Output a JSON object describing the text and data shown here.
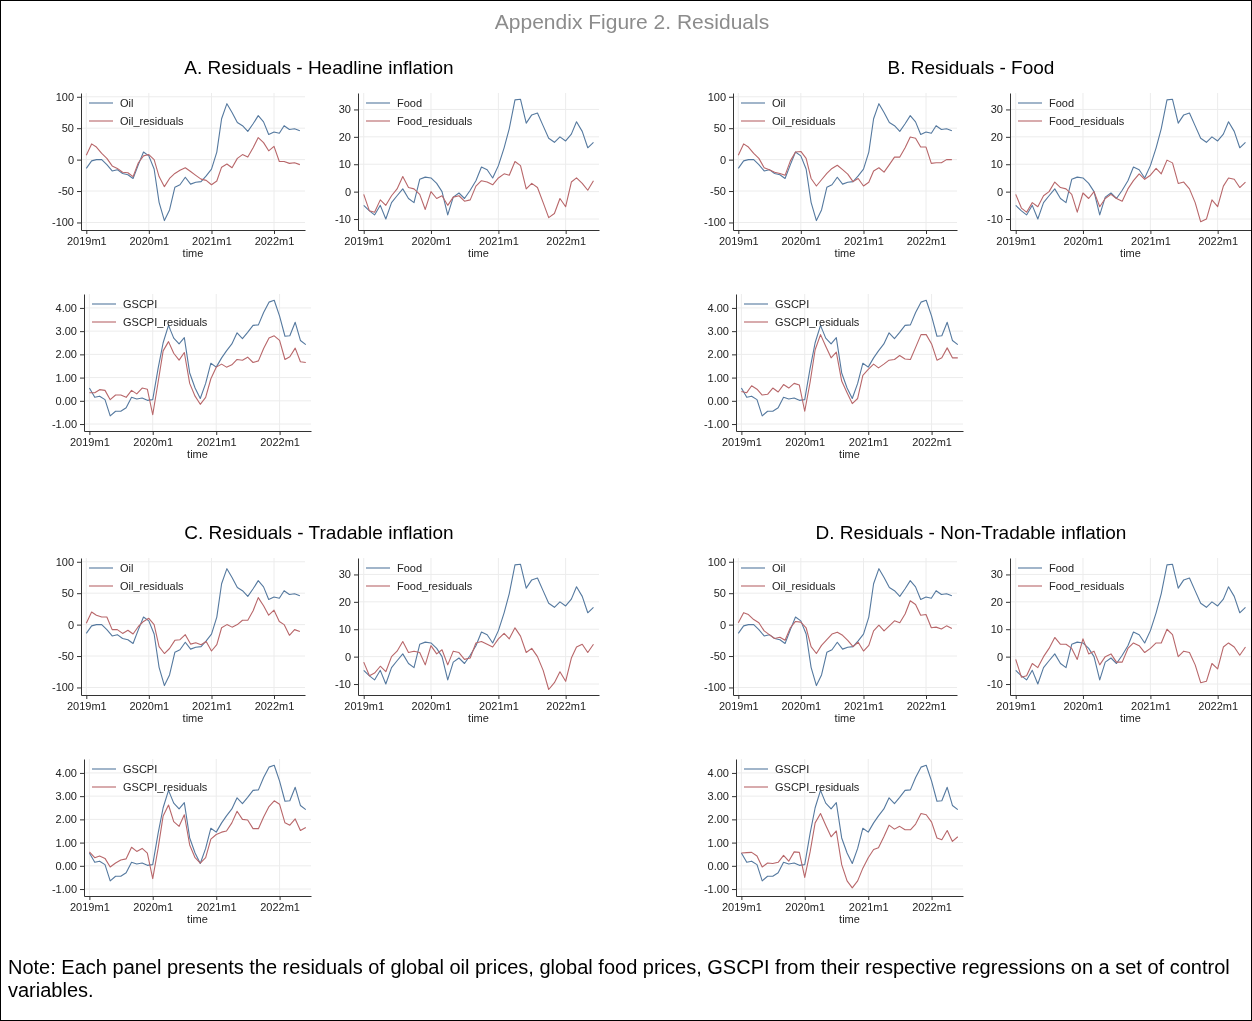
{
  "chart_data": [
    {
      "type": "line",
      "title": "A. Residuals - Headline inflation",
      "xlabel": "time",
      "annotations": [
        "Appendix Figure 2. Residuals",
        "Note: Each panel presents the residuals of global oil prices, global food prices, GSCPI from their respective regressions on a set of control variables."
      ],
      "x": [
        "2019-01",
        "2019-02",
        "2019-03",
        "2019-04",
        "2019-05",
        "2019-06",
        "2019-07",
        "2019-08",
        "2019-09",
        "2019-10",
        "2019-11",
        "2019-12",
        "2020-01",
        "2020-02",
        "2020-03",
        "2020-04",
        "2020-05",
        "2020-06",
        "2020-07",
        "2020-08",
        "2020-09",
        "2020-10",
        "2020-11",
        "2020-12",
        "2021-01",
        "2021-02",
        "2021-03",
        "2021-04",
        "2021-05",
        "2021-06",
        "2021-07",
        "2021-08",
        "2021-09",
        "2021-10",
        "2021-11",
        "2021-12",
        "2022-01",
        "2022-02",
        "2022-03",
        "2022-04",
        "2022-05",
        "2022-06"
      ],
      "xlim": [
        "2018-12",
        "2022-07"
      ],
      "xticks": [
        {
          "value": "2019-01",
          "label": "2019m1"
        },
        {
          "value": "2020-01",
          "label": "2020m1"
        },
        {
          "value": "2021-01",
          "label": "2021m1"
        },
        {
          "value": "2022-01",
          "label": "2022m1"
        }
      ],
      "ylim": [
        -112,
        106
      ],
      "yticks": [
        -100,
        -50,
        0,
        50,
        100
      ],
      "grid": true,
      "legend": "top left",
      "series": [
        {
          "name": "Oil",
          "color": "#55799f",
          "values": [
            -14,
            -2,
            0,
            0,
            -8,
            -18,
            -16,
            -22,
            -24,
            -30,
            -8,
            12,
            6,
            -15,
            -68,
            -97,
            -80,
            -44,
            -40,
            -28,
            -39,
            -36,
            -35,
            -26,
            -15,
            12,
            65,
            89,
            75,
            59,
            54,
            45,
            57,
            70,
            60,
            40,
            44,
            42,
            54,
            48,
            49,
            46
          ]
        },
        {
          "name": "Oil_residuals",
          "color": "#b8676a",
          "values": [
            7,
            25,
            20,
            10,
            2,
            -10,
            -14,
            -20,
            -21,
            -27,
            -5,
            6,
            8,
            0,
            -27,
            -43,
            -30,
            -22,
            -17,
            -13,
            -19,
            -25,
            -31,
            -33,
            -40,
            -34,
            -12,
            -7,
            -13,
            2,
            8,
            4,
            19,
            35,
            27,
            14,
            21,
            -3,
            -3,
            -6,
            -5,
            -8
          ]
        }
      ]
    },
    {
      "type": "line",
      "xlabel": "time",
      "x": [
        "2019-01",
        "2019-02",
        "2019-03",
        "2019-04",
        "2019-05",
        "2019-06",
        "2019-07",
        "2019-08",
        "2019-09",
        "2019-10",
        "2019-11",
        "2019-12",
        "2020-01",
        "2020-02",
        "2020-03",
        "2020-04",
        "2020-05",
        "2020-06",
        "2020-07",
        "2020-08",
        "2020-09",
        "2020-10",
        "2020-11",
        "2020-12",
        "2021-01",
        "2021-02",
        "2021-03",
        "2021-04",
        "2021-05",
        "2021-06",
        "2021-07",
        "2021-08",
        "2021-09",
        "2021-10",
        "2021-11",
        "2021-12",
        "2022-01",
        "2022-02",
        "2022-03",
        "2022-04",
        "2022-05",
        "2022-06"
      ],
      "xlim": [
        "2018-12",
        "2022-07"
      ],
      "xticks": [
        {
          "value": "2019-01",
          "label": "2019m1"
        },
        {
          "value": "2020-01",
          "label": "2020m1"
        },
        {
          "value": "2021-01",
          "label": "2021m1"
        },
        {
          "value": "2022-01",
          "label": "2022m1"
        }
      ],
      "ylim": [
        -14,
        36
      ],
      "yticks": [
        -10,
        0,
        10,
        20,
        30
      ],
      "grid": true,
      "legend": "top left",
      "series": [
        {
          "name": "Food",
          "color": "#55799f",
          "values": [
            -5,
            -7,
            -8.5,
            -5,
            -10,
            -4,
            -1.5,
            1,
            -2.5,
            -4,
            4.5,
            5.3,
            5,
            3,
            0,
            -8.5,
            -2,
            -0.5,
            -2.5,
            0.5,
            4,
            9,
            8,
            5,
            9.5,
            16,
            23,
            33.5,
            33.7,
            25,
            28,
            28.7,
            24,
            19.5,
            18,
            20,
            18.5,
            21,
            25.5,
            22,
            16,
            18
          ]
        },
        {
          "name": "Food_residuals",
          "color": "#b8676a",
          "values": [
            -1,
            -7,
            -7.5,
            -3,
            -5,
            -1.5,
            1,
            5.5,
            1.5,
            1,
            -1,
            -6.5,
            0,
            -2.5,
            -1.5,
            -5,
            -2,
            -1.5,
            -3.5,
            -3,
            2,
            4,
            3.5,
            2.5,
            5,
            6.5,
            6,
            11,
            9.5,
            1,
            3,
            1.5,
            -4,
            -9.5,
            -8,
            -2.5,
            -5.5,
            3.5,
            5,
            3,
            0.5,
            4
          ]
        }
      ]
    },
    {
      "type": "line",
      "xlabel": "time",
      "x": [
        "2019-01",
        "2019-02",
        "2019-03",
        "2019-04",
        "2019-05",
        "2019-06",
        "2019-07",
        "2019-08",
        "2019-09",
        "2019-10",
        "2019-11",
        "2019-12",
        "2020-01",
        "2020-02",
        "2020-03",
        "2020-04",
        "2020-05",
        "2020-06",
        "2020-07",
        "2020-08",
        "2020-09",
        "2020-10",
        "2020-11",
        "2020-12",
        "2021-01",
        "2021-02",
        "2021-03",
        "2021-04",
        "2021-05",
        "2021-06",
        "2021-07",
        "2021-08",
        "2021-09",
        "2021-10",
        "2021-11",
        "2021-12",
        "2022-01",
        "2022-02",
        "2022-03",
        "2022-04",
        "2022-05",
        "2022-06"
      ],
      "xlim": [
        "2018-12",
        "2022-07"
      ],
      "xticks": [
        {
          "value": "2019-01",
          "label": "2019m1"
        },
        {
          "value": "2020-01",
          "label": "2020m1"
        },
        {
          "value": "2021-01",
          "label": "2021m1"
        },
        {
          "value": "2022-01",
          "label": "2022m1"
        }
      ],
      "ylim": [
        -1.3,
        4.6
      ],
      "yticks": [
        {
          "value": -1,
          "label": "-1.00"
        },
        {
          "value": 0,
          "label": "0.00"
        },
        {
          "value": 1,
          "label": "1.00"
        },
        {
          "value": 2,
          "label": "2.00"
        },
        {
          "value": 3,
          "label": "3.00"
        },
        {
          "value": 4,
          "label": "4.00"
        }
      ],
      "grid": true,
      "legend": "top left",
      "series": [
        {
          "name": "GSCPI",
          "color": "#55799f",
          "values": [
            0.55,
            0.15,
            0.2,
            0.05,
            -0.65,
            -0.45,
            -0.45,
            -0.3,
            0.15,
            0.08,
            0.12,
            0.02,
            0.05,
            1.4,
            2.5,
            3.25,
            2.7,
            2.45,
            2.72,
            1.2,
            0.55,
            0.1,
            0.75,
            1.62,
            1.45,
            1.85,
            2.15,
            2.45,
            2.93,
            2.68,
            2.95,
            3.25,
            3.27,
            3.8,
            4.25,
            4.33,
            3.65,
            2.78,
            2.8,
            3.38,
            2.6,
            2.42
          ]
        },
        {
          "name": "GSCPI_residuals",
          "color": "#b8676a",
          "values": [
            0.35,
            0.35,
            0.48,
            0.45,
            0.05,
            0.25,
            0.25,
            0.15,
            0.45,
            0.3,
            0.55,
            0.5,
            -0.6,
            0.8,
            2.15,
            2.55,
            2.05,
            1.75,
            2.08,
            0.75,
            0.2,
            -0.15,
            0.15,
            0.95,
            1.45,
            1.58,
            1.45,
            1.55,
            1.78,
            1.75,
            1.88,
            1.65,
            1.72,
            2.25,
            2.7,
            2.8,
            2.6,
            1.78,
            1.9,
            2.27,
            1.68,
            1.65
          ]
        }
      ]
    },
    {
      "type": "line",
      "title": "B. Residuals - Food",
      "xlabel": "time",
      "x": [
        "2019-01",
        "2019-02",
        "2019-03",
        "2019-04",
        "2019-05",
        "2019-06",
        "2019-07",
        "2019-08",
        "2019-09",
        "2019-10",
        "2019-11",
        "2019-12",
        "2020-01",
        "2020-02",
        "2020-03",
        "2020-04",
        "2020-05",
        "2020-06",
        "2020-07",
        "2020-08",
        "2020-09",
        "2020-10",
        "2020-11",
        "2020-12",
        "2021-01",
        "2021-02",
        "2021-03",
        "2021-04",
        "2021-05",
        "2021-06",
        "2021-07",
        "2021-08",
        "2021-09",
        "2021-10",
        "2021-11",
        "2021-12",
        "2022-01",
        "2022-02",
        "2022-03",
        "2022-04",
        "2022-05",
        "2022-06"
      ],
      "xlim": [
        "2018-12",
        "2022-07"
      ],
      "xticks": [
        {
          "value": "2019-01",
          "label": "2019m1"
        },
        {
          "value": "2020-01",
          "label": "2020m1"
        },
        {
          "value": "2021-01",
          "label": "2021m1"
        },
        {
          "value": "2022-01",
          "label": "2022m1"
        }
      ],
      "ylim": [
        -112,
        106
      ],
      "yticks": [
        -100,
        -50,
        0,
        50,
        100
      ],
      "grid": true,
      "legend": "top left",
      "series": [
        {
          "name": "Oil",
          "color": "#55799f",
          "values": [
            -14,
            -2,
            0,
            0,
            -8,
            -18,
            -16,
            -22,
            -24,
            -30,
            -8,
            12,
            6,
            -15,
            -68,
            -97,
            -80,
            -44,
            -40,
            -28,
            -39,
            -36,
            -35,
            -26,
            -15,
            12,
            65,
            89,
            75,
            59,
            54,
            45,
            57,
            70,
            60,
            40,
            44,
            42,
            54,
            48,
            49,
            46
          ]
        },
        {
          "name": "Oil_residuals",
          "color": "#b8676a",
          "values": [
            7,
            25,
            20,
            10,
            2,
            -13,
            -16,
            -20,
            -22,
            -25,
            -2,
            12,
            13,
            2,
            -30,
            -42,
            -32,
            -22,
            -14,
            -9,
            -16,
            -23,
            -35,
            -30,
            -42,
            -36,
            -18,
            -13,
            -20,
            -8,
            4,
            4,
            19,
            36,
            34,
            20,
            20,
            -6,
            -5,
            -5,
            0,
            0
          ]
        }
      ]
    },
    {
      "type": "line",
      "xlabel": "time",
      "x": [
        "2019-01",
        "2019-02",
        "2019-03",
        "2019-04",
        "2019-05",
        "2019-06",
        "2019-07",
        "2019-08",
        "2019-09",
        "2019-10",
        "2019-11",
        "2019-12",
        "2020-01",
        "2020-02",
        "2020-03",
        "2020-04",
        "2020-05",
        "2020-06",
        "2020-07",
        "2020-08",
        "2020-09",
        "2020-10",
        "2020-11",
        "2020-12",
        "2021-01",
        "2021-02",
        "2021-03",
        "2021-04",
        "2021-05",
        "2021-06",
        "2021-07",
        "2021-08",
        "2021-09",
        "2021-10",
        "2021-11",
        "2021-12",
        "2022-01",
        "2022-02",
        "2022-03",
        "2022-04",
        "2022-05",
        "2022-06"
      ],
      "xlim": [
        "2018-12",
        "2022-07"
      ],
      "xticks": [
        {
          "value": "2019-01",
          "label": "2019m1"
        },
        {
          "value": "2020-01",
          "label": "2020m1"
        },
        {
          "value": "2021-01",
          "label": "2021m1"
        },
        {
          "value": "2022-01",
          "label": "2022m1"
        }
      ],
      "ylim": [
        -14,
        36
      ],
      "yticks": [
        -10,
        0,
        10,
        20,
        30
      ],
      "grid": true,
      "legend": "top left",
      "series": [
        {
          "name": "Food",
          "color": "#55799f",
          "values": [
            -5,
            -7,
            -8.5,
            -5,
            -10,
            -4,
            -1.5,
            1,
            -2.5,
            -4,
            4.5,
            5.3,
            5,
            3,
            0,
            -8.5,
            -2,
            -0.5,
            -2.5,
            0.5,
            4,
            9,
            8,
            5,
            9.5,
            16,
            23,
            33.5,
            33.7,
            25,
            28,
            28.7,
            24,
            19.5,
            18,
            20,
            18.5,
            21,
            25.5,
            22,
            16,
            18
          ]
        },
        {
          "name": "Food_residuals",
          "color": "#b8676a",
          "values": [
            -1,
            -6,
            -7.5,
            -4,
            -5.5,
            -1.5,
            0,
            3.5,
            1.5,
            1,
            -1,
            -7.5,
            -0.5,
            -2.5,
            0,
            -5.5,
            -2.5,
            -1,
            -2.5,
            -3.5,
            1,
            4,
            6.5,
            4.5,
            6,
            8.5,
            6.5,
            11.5,
            10.5,
            3,
            3.5,
            1,
            -4,
            -11,
            -10,
            -3,
            -5.5,
            2,
            5,
            4.5,
            1.5,
            3.5
          ]
        }
      ]
    },
    {
      "type": "line",
      "xlabel": "time",
      "x": [
        "2019-01",
        "2019-02",
        "2019-03",
        "2019-04",
        "2019-05",
        "2019-06",
        "2019-07",
        "2019-08",
        "2019-09",
        "2019-10",
        "2019-11",
        "2019-12",
        "2020-01",
        "2020-02",
        "2020-03",
        "2020-04",
        "2020-05",
        "2020-06",
        "2020-07",
        "2020-08",
        "2020-09",
        "2020-10",
        "2020-11",
        "2020-12",
        "2021-01",
        "2021-02",
        "2021-03",
        "2021-04",
        "2021-05",
        "2021-06",
        "2021-07",
        "2021-08",
        "2021-09",
        "2021-10",
        "2021-11",
        "2021-12",
        "2022-01",
        "2022-02",
        "2022-03",
        "2022-04",
        "2022-05",
        "2022-06"
      ],
      "xlim": [
        "2018-12",
        "2022-07"
      ],
      "xticks": [
        {
          "value": "2019-01",
          "label": "2019m1"
        },
        {
          "value": "2020-01",
          "label": "2020m1"
        },
        {
          "value": "2021-01",
          "label": "2021m1"
        },
        {
          "value": "2022-01",
          "label": "2022m1"
        }
      ],
      "ylim": [
        -1.3,
        4.6
      ],
      "yticks": [
        {
          "value": -1,
          "label": "-1.00"
        },
        {
          "value": 0,
          "label": "0.00"
        },
        {
          "value": 1,
          "label": "1.00"
        },
        {
          "value": 2,
          "label": "2.00"
        },
        {
          "value": 3,
          "label": "3.00"
        },
        {
          "value": 4,
          "label": "4.00"
        }
      ],
      "grid": true,
      "legend": "top left",
      "series": [
        {
          "name": "GSCPI",
          "color": "#55799f",
          "values": [
            0.55,
            0.15,
            0.2,
            0.05,
            -0.65,
            -0.45,
            -0.45,
            -0.3,
            0.15,
            0.08,
            0.12,
            0.02,
            0.05,
            1.4,
            2.5,
            3.25,
            2.7,
            2.45,
            2.72,
            1.2,
            0.55,
            0.1,
            0.75,
            1.62,
            1.45,
            1.85,
            2.15,
            2.45,
            2.93,
            2.68,
            2.95,
            3.25,
            3.27,
            3.8,
            4.25,
            4.33,
            3.65,
            2.78,
            2.8,
            3.38,
            2.6,
            2.42
          ]
        },
        {
          "name": "GSCPI_residuals",
          "color": "#b8676a",
          "values": [
            0.4,
            0.35,
            0.65,
            0.5,
            0.25,
            0.28,
            0.55,
            0.38,
            0.7,
            0.55,
            0.75,
            0.68,
            -0.45,
            0.8,
            2.2,
            2.85,
            2.35,
            1.85,
            2.1,
            0.85,
            0.35,
            -0.12,
            0.1,
            1.1,
            1.35,
            1.58,
            1.42,
            1.58,
            1.75,
            1.78,
            1.95,
            1.8,
            1.78,
            2.3,
            2.85,
            2.85,
            2.45,
            1.75,
            1.85,
            2.28,
            1.85,
            1.85
          ]
        }
      ]
    },
    {
      "type": "line",
      "title": "C. Residuals - Tradable inflation",
      "xlabel": "time",
      "x": [
        "2019-01",
        "2019-02",
        "2019-03",
        "2019-04",
        "2019-05",
        "2019-06",
        "2019-07",
        "2019-08",
        "2019-09",
        "2019-10",
        "2019-11",
        "2019-12",
        "2020-01",
        "2020-02",
        "2020-03",
        "2020-04",
        "2020-05",
        "2020-06",
        "2020-07",
        "2020-08",
        "2020-09",
        "2020-10",
        "2020-11",
        "2020-12",
        "2021-01",
        "2021-02",
        "2021-03",
        "2021-04",
        "2021-05",
        "2021-06",
        "2021-07",
        "2021-08",
        "2021-09",
        "2021-10",
        "2021-11",
        "2021-12",
        "2022-01",
        "2022-02",
        "2022-03",
        "2022-04",
        "2022-05",
        "2022-06"
      ],
      "xlim": [
        "2018-12",
        "2022-07"
      ],
      "xticks": [
        {
          "value": "2019-01",
          "label": "2019m1"
        },
        {
          "value": "2020-01",
          "label": "2020m1"
        },
        {
          "value": "2021-01",
          "label": "2021m1"
        },
        {
          "value": "2022-01",
          "label": "2022m1"
        }
      ],
      "ylim": [
        -112,
        106
      ],
      "yticks": [
        -100,
        -50,
        0,
        50,
        100
      ],
      "grid": true,
      "legend": "top left",
      "series": [
        {
          "name": "Oil",
          "color": "#55799f",
          "values": [
            -14,
            -2,
            0,
            0,
            -8,
            -18,
            -16,
            -22,
            -24,
            -30,
            -8,
            12,
            6,
            -15,
            -68,
            -97,
            -80,
            -44,
            -40,
            -28,
            -39,
            -36,
            -35,
            -26,
            -15,
            12,
            65,
            89,
            75,
            59,
            54,
            45,
            57,
            70,
            60,
            40,
            44,
            42,
            54,
            48,
            49,
            46
          ]
        },
        {
          "name": "Oil_residuals",
          "color": "#b8676a",
          "values": [
            2,
            20,
            15,
            12,
            12,
            -8,
            -8,
            -14,
            -9,
            -15,
            -3,
            5,
            10,
            0,
            -35,
            -46,
            -38,
            -25,
            -24,
            -16,
            -31,
            -29,
            -32,
            -27,
            -42,
            -32,
            -5,
            0,
            -4,
            0,
            7,
            7,
            22,
            43,
            30,
            15,
            23,
            5,
            0,
            -17,
            -8,
            -11
          ]
        }
      ]
    },
    {
      "type": "line",
      "xlabel": "time",
      "x": [
        "2019-01",
        "2019-02",
        "2019-03",
        "2019-04",
        "2019-05",
        "2019-06",
        "2019-07",
        "2019-08",
        "2019-09",
        "2019-10",
        "2019-11",
        "2019-12",
        "2020-01",
        "2020-02",
        "2020-03",
        "2020-04",
        "2020-05",
        "2020-06",
        "2020-07",
        "2020-08",
        "2020-09",
        "2020-10",
        "2020-11",
        "2020-12",
        "2021-01",
        "2021-02",
        "2021-03",
        "2021-04",
        "2021-05",
        "2021-06",
        "2021-07",
        "2021-08",
        "2021-09",
        "2021-10",
        "2021-11",
        "2021-12",
        "2022-01",
        "2022-02",
        "2022-03",
        "2022-04",
        "2022-05",
        "2022-06"
      ],
      "xlim": [
        "2018-12",
        "2022-07"
      ],
      "xticks": [
        {
          "value": "2019-01",
          "label": "2019m1"
        },
        {
          "value": "2020-01",
          "label": "2020m1"
        },
        {
          "value": "2021-01",
          "label": "2021m1"
        },
        {
          "value": "2022-01",
          "label": "2022m1"
        }
      ],
      "ylim": [
        -14,
        36
      ],
      "yticks": [
        -10,
        0,
        10,
        20,
        30
      ],
      "grid": true,
      "legend": "top left",
      "series": [
        {
          "name": "Food",
          "color": "#55799f",
          "values": [
            -5,
            -7,
            -8.5,
            -5,
            -10,
            -4,
            -1.5,
            1,
            -2.5,
            -4,
            4.5,
            5.3,
            5,
            3,
            0,
            -8.5,
            -2,
            -0.5,
            -2.5,
            0.5,
            4,
            9,
            8,
            5,
            9.5,
            16,
            23,
            33.5,
            33.7,
            25,
            28,
            28.7,
            24,
            19.5,
            18,
            20,
            18.5,
            21,
            25.5,
            22,
            16,
            18
          ]
        },
        {
          "name": "Food_residuals",
          "color": "#b8676a",
          "values": [
            -2,
            -7,
            -6,
            -3.5,
            -5.5,
            0,
            2,
            5.5,
            1.5,
            2,
            1.5,
            -3,
            4,
            1,
            2.5,
            -3,
            2,
            1.5,
            -1,
            -0.5,
            5,
            5.5,
            4.5,
            3.5,
            6.5,
            8.5,
            6.5,
            10.5,
            7.5,
            1.5,
            3,
            0,
            -5,
            -12,
            -9.5,
            -5.5,
            -9,
            -0.5,
            3.5,
            4.5,
            1.5,
            4.5
          ]
        }
      ]
    },
    {
      "type": "line",
      "xlabel": "time",
      "x": [
        "2019-01",
        "2019-02",
        "2019-03",
        "2019-04",
        "2019-05",
        "2019-06",
        "2019-07",
        "2019-08",
        "2019-09",
        "2019-10",
        "2019-11",
        "2019-12",
        "2020-01",
        "2020-02",
        "2020-03",
        "2020-04",
        "2020-05",
        "2020-06",
        "2020-07",
        "2020-08",
        "2020-09",
        "2020-10",
        "2020-11",
        "2020-12",
        "2021-01",
        "2021-02",
        "2021-03",
        "2021-04",
        "2021-05",
        "2021-06",
        "2021-07",
        "2021-08",
        "2021-09",
        "2021-10",
        "2021-11",
        "2021-12",
        "2022-01",
        "2022-02",
        "2022-03",
        "2022-04",
        "2022-05",
        "2022-06"
      ],
      "xlim": [
        "2018-12",
        "2022-07"
      ],
      "xticks": [
        {
          "value": "2019-01",
          "label": "2019m1"
        },
        {
          "value": "2020-01",
          "label": "2020m1"
        },
        {
          "value": "2021-01",
          "label": "2021m1"
        },
        {
          "value": "2022-01",
          "label": "2022m1"
        }
      ],
      "ylim": [
        -1.3,
        4.6
      ],
      "yticks": [
        {
          "value": -1,
          "label": "-1.00"
        },
        {
          "value": 0,
          "label": "0.00"
        },
        {
          "value": 1,
          "label": "1.00"
        },
        {
          "value": 2,
          "label": "2.00"
        },
        {
          "value": 3,
          "label": "3.00"
        },
        {
          "value": 4,
          "label": "4.00"
        }
      ],
      "grid": true,
      "legend": "top left",
      "series": [
        {
          "name": "GSCPI",
          "color": "#55799f",
          "values": [
            0.55,
            0.15,
            0.2,
            0.05,
            -0.65,
            -0.45,
            -0.45,
            -0.3,
            0.15,
            0.08,
            0.12,
            0.02,
            0.05,
            1.4,
            2.5,
            3.25,
            2.7,
            2.45,
            2.72,
            1.2,
            0.55,
            0.1,
            0.75,
            1.62,
            1.45,
            1.85,
            2.15,
            2.45,
            2.93,
            2.68,
            2.95,
            3.25,
            3.27,
            3.8,
            4.25,
            4.33,
            3.65,
            2.78,
            2.8,
            3.38,
            2.6,
            2.42
          ]
        },
        {
          "name": "GSCPI_residuals",
          "color": "#b8676a",
          "values": [
            0.6,
            0.35,
            0.42,
            0.32,
            -0.05,
            0.12,
            0.25,
            0.3,
            0.8,
            0.62,
            0.75,
            0.55,
            -0.55,
            0.75,
            2.15,
            2.62,
            1.9,
            1.7,
            2.2,
            0.9,
            0.35,
            0.12,
            0.35,
            1.15,
            1.35,
            1.45,
            1.5,
            1.85,
            2.35,
            2.0,
            1.97,
            1.6,
            1.6,
            2.1,
            2.55,
            2.8,
            2.65,
            1.85,
            1.75,
            2.02,
            1.52,
            1.65
          ]
        }
      ]
    },
    {
      "type": "line",
      "title": "D. Residuals - Non-Tradable inflation",
      "xlabel": "time",
      "x": [
        "2019-01",
        "2019-02",
        "2019-03",
        "2019-04",
        "2019-05",
        "2019-06",
        "2019-07",
        "2019-08",
        "2019-09",
        "2019-10",
        "2019-11",
        "2019-12",
        "2020-01",
        "2020-02",
        "2020-03",
        "2020-04",
        "2020-05",
        "2020-06",
        "2020-07",
        "2020-08",
        "2020-09",
        "2020-10",
        "2020-11",
        "2020-12",
        "2021-01",
        "2021-02",
        "2021-03",
        "2021-04",
        "2021-05",
        "2021-06",
        "2021-07",
        "2021-08",
        "2021-09",
        "2021-10",
        "2021-11",
        "2021-12",
        "2022-01",
        "2022-02",
        "2022-03",
        "2022-04",
        "2022-05",
        "2022-06"
      ],
      "xlim": [
        "2018-12",
        "2022-07"
      ],
      "xticks": [
        {
          "value": "2019-01",
          "label": "2019m1"
        },
        {
          "value": "2020-01",
          "label": "2020m1"
        },
        {
          "value": "2021-01",
          "label": "2021m1"
        },
        {
          "value": "2022-01",
          "label": "2022m1"
        }
      ],
      "ylim": [
        -112,
        106
      ],
      "yticks": [
        -100,
        -50,
        0,
        50,
        100
      ],
      "grid": true,
      "legend": "top left",
      "series": [
        {
          "name": "Oil",
          "color": "#55799f",
          "values": [
            -14,
            -2,
            0,
            0,
            -8,
            -18,
            -16,
            -22,
            -24,
            -30,
            -8,
            12,
            6,
            -15,
            -68,
            -97,
            -80,
            -44,
            -40,
            -28,
            -39,
            -36,
            -35,
            -26,
            -15,
            12,
            65,
            89,
            75,
            59,
            54,
            45,
            57,
            70,
            60,
            40,
            44,
            42,
            54,
            48,
            49,
            46
          ]
        },
        {
          "name": "Oil_residuals",
          "color": "#b8676a",
          "values": [
            3,
            19,
            16,
            8,
            3,
            -10,
            -16,
            -22,
            -20,
            -25,
            -5,
            5,
            4,
            -5,
            -35,
            -46,
            -33,
            -24,
            -15,
            -12,
            -17,
            -25,
            -35,
            -28,
            -42,
            -33,
            -10,
            -1,
            -10,
            -2,
            6,
            3,
            17,
            38,
            32,
            15,
            16,
            -5,
            -4,
            -7,
            -2,
            -6
          ]
        }
      ]
    },
    {
      "type": "line",
      "xlabel": "time",
      "x": [
        "2019-01",
        "2019-02",
        "2019-03",
        "2019-04",
        "2019-05",
        "2019-06",
        "2019-07",
        "2019-08",
        "2019-09",
        "2019-10",
        "2019-11",
        "2019-12",
        "2020-01",
        "2020-02",
        "2020-03",
        "2020-04",
        "2020-05",
        "2020-06",
        "2020-07",
        "2020-08",
        "2020-09",
        "2020-10",
        "2020-11",
        "2020-12",
        "2021-01",
        "2021-02",
        "2021-03",
        "2021-04",
        "2021-05",
        "2021-06",
        "2021-07",
        "2021-08",
        "2021-09",
        "2021-10",
        "2021-11",
        "2021-12",
        "2022-01",
        "2022-02",
        "2022-03",
        "2022-04",
        "2022-05",
        "2022-06"
      ],
      "xlim": [
        "2018-12",
        "2022-07"
      ],
      "xticks": [
        {
          "value": "2019-01",
          "label": "2019m1"
        },
        {
          "value": "2020-01",
          "label": "2020m1"
        },
        {
          "value": "2021-01",
          "label": "2021m1"
        },
        {
          "value": "2022-01",
          "label": "2022m1"
        }
      ],
      "ylim": [
        -14,
        36
      ],
      "yticks": [
        -10,
        0,
        10,
        20,
        30
      ],
      "grid": true,
      "legend": "top left",
      "series": [
        {
          "name": "Food",
          "color": "#55799f",
          "values": [
            -5,
            -7,
            -8.5,
            -5,
            -10,
            -4,
            -1.5,
            1,
            -2.5,
            -4,
            4.5,
            5.3,
            5,
            3,
            0,
            -8.5,
            -2,
            -0.5,
            -2.5,
            0.5,
            4,
            9,
            8,
            5,
            9.5,
            16,
            23,
            33.5,
            33.7,
            25,
            28,
            28.7,
            24,
            19.5,
            18,
            20,
            18.5,
            21,
            25.5,
            22,
            16,
            18
          ]
        },
        {
          "name": "Food_residuals",
          "color": "#b8676a",
          "values": [
            -1,
            -7.5,
            -7,
            -2.5,
            -4,
            0,
            3,
            7,
            4.5,
            4.5,
            3,
            -1,
            6.5,
            1,
            2,
            -3,
            0,
            1,
            -2,
            -2,
            3,
            5,
            4,
            1.5,
            3,
            5,
            5,
            10,
            8,
            0,
            2,
            1.5,
            -3,
            -9.5,
            -9,
            -2.5,
            -4.5,
            3.5,
            5,
            3.5,
            0.5,
            3.5
          ]
        }
      ]
    },
    {
      "type": "line",
      "xlabel": "time",
      "x": [
        "2019-01",
        "2019-02",
        "2019-03",
        "2019-04",
        "2019-05",
        "2019-06",
        "2019-07",
        "2019-08",
        "2019-09",
        "2019-10",
        "2019-11",
        "2019-12",
        "2020-01",
        "2020-02",
        "2020-03",
        "2020-04",
        "2020-05",
        "2020-06",
        "2020-07",
        "2020-08",
        "2020-09",
        "2020-10",
        "2020-11",
        "2020-12",
        "2021-01",
        "2021-02",
        "2021-03",
        "2021-04",
        "2021-05",
        "2021-06",
        "2021-07",
        "2021-08",
        "2021-09",
        "2021-10",
        "2021-11",
        "2021-12",
        "2022-01",
        "2022-02",
        "2022-03",
        "2022-04",
        "2022-05",
        "2022-06"
      ],
      "xlim": [
        "2018-12",
        "2022-07"
      ],
      "xticks": [
        {
          "value": "2019-01",
          "label": "2019m1"
        },
        {
          "value": "2020-01",
          "label": "2020m1"
        },
        {
          "value": "2021-01",
          "label": "2021m1"
        },
        {
          "value": "2022-01",
          "label": "2022m1"
        }
      ],
      "ylim": [
        -1.3,
        4.6
      ],
      "yticks": [
        {
          "value": -1,
          "label": "-1.00"
        },
        {
          "value": 0,
          "label": "0.00"
        },
        {
          "value": 1,
          "label": "1.00"
        },
        {
          "value": 2,
          "label": "2.00"
        },
        {
          "value": 3,
          "label": "3.00"
        },
        {
          "value": 4,
          "label": "4.00"
        }
      ],
      "grid": true,
      "legend": "top left",
      "series": [
        {
          "name": "GSCPI",
          "color": "#55799f",
          "values": [
            0.55,
            0.15,
            0.2,
            0.05,
            -0.65,
            -0.45,
            -0.45,
            -0.3,
            0.15,
            0.08,
            0.12,
            0.02,
            0.05,
            1.4,
            2.5,
            3.25,
            2.7,
            2.45,
            2.72,
            1.2,
            0.55,
            0.1,
            0.75,
            1.62,
            1.45,
            1.85,
            2.15,
            2.45,
            2.93,
            2.68,
            2.95,
            3.25,
            3.27,
            3.8,
            4.25,
            4.33,
            3.65,
            2.78,
            2.8,
            3.38,
            2.6,
            2.42
          ]
        },
        {
          "name": "GSCPI_residuals",
          "color": "#b8676a",
          "values": [
            0.55,
            0.57,
            0.58,
            0.42,
            -0.05,
            0.12,
            0.1,
            0.15,
            0.45,
            0.2,
            0.6,
            0.58,
            -0.5,
            0.6,
            1.85,
            2.25,
            1.75,
            1.25,
            1.5,
            0.05,
            -0.65,
            -0.95,
            -0.65,
            -0.1,
            0.35,
            0.7,
            0.78,
            1.25,
            1.75,
            1.58,
            1.7,
            1.55,
            1.55,
            1.8,
            2.25,
            2.2,
            1.88,
            1.2,
            1.12,
            1.52,
            1.05,
            1.25
          ]
        }
      ]
    }
  ]
}
